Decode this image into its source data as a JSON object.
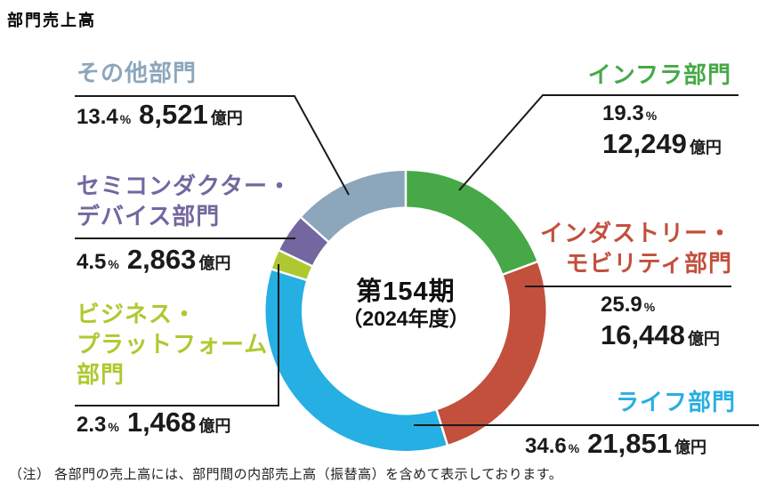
{
  "title": "部門売上高",
  "note": "（注） 各部門の売上高には、部門間の内部売上高（振替高）を含めて表示しております。",
  "percent_symbol": "%",
  "chart_data": {
    "type": "donut",
    "title": "部門売上高",
    "center_label": {
      "line1": "第154期",
      "line2": "（2024年度）"
    },
    "start_angle_deg": 0,
    "direction": "clockwise",
    "total_percent": 100.0,
    "value_unit": "億円",
    "segments": [
      {
        "key": "infra",
        "name": "インフラ部門",
        "label_lines": [
          "インフラ部門"
        ],
        "percent": 19.3,
        "value": "12,249",
        "unit": "億円",
        "color": "#47A847"
      },
      {
        "key": "industry-mobility",
        "name": "インダストリー・モビリティ部門",
        "label_lines": [
          "インダストリー・",
          "モビリティ部門"
        ],
        "percent": 25.9,
        "value": "16,448",
        "unit": "億円",
        "color": "#C2503C"
      },
      {
        "key": "life",
        "name": "ライフ部門",
        "label_lines": [
          "ライフ部門"
        ],
        "percent": 34.6,
        "value": "21,851",
        "unit": "億円",
        "color": "#26AFE3"
      },
      {
        "key": "business-platform",
        "name": "ビジネス・プラットフォーム部門",
        "label_lines": [
          "ビジネス・",
          "プラットフォーム",
          "部門"
        ],
        "percent": 2.3,
        "value": "1,468",
        "unit": "億円",
        "color": "#AEC92F"
      },
      {
        "key": "semiconductor-device",
        "name": "セミコンダクター・デバイス部門",
        "label_lines": [
          "セミコンダクター・",
          "デバイス部門"
        ],
        "percent": 4.5,
        "value": "2,863",
        "unit": "億円",
        "color": "#73679F"
      },
      {
        "key": "other",
        "name": "その他部門",
        "label_lines": [
          "その他部門"
        ],
        "percent": 13.4,
        "value": "8,521",
        "unit": "億円",
        "color": "#8CA6BC"
      }
    ]
  }
}
